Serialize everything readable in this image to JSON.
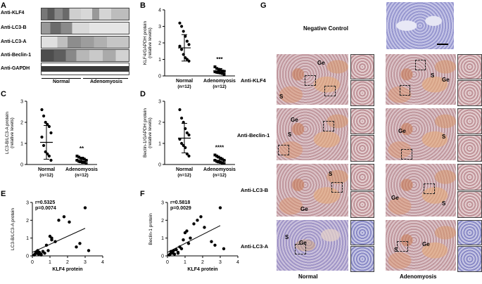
{
  "panels": {
    "A": "A",
    "B": "B",
    "C": "C",
    "D": "D",
    "E": "E",
    "F": "F",
    "G": "G"
  },
  "western_blot": {
    "rows": [
      "Anti-KLF4",
      "Anti-LC3-B",
      "Anti-LC3-A",
      "Anti-Beclin-1",
      "Anti-GAPDH"
    ],
    "groups": [
      "Normal",
      "Adenomyosis"
    ]
  },
  "chart_data": [
    {
      "type": "scatter",
      "panel": "B",
      "ylabel": "KLF4/GAPDH protein (relative levels)",
      "categories": [
        "Normal\n(n=12)",
        "Adenomyosis\n(n=12)"
      ],
      "ylim": [
        0,
        4
      ],
      "yticks": [
        0,
        1,
        2,
        3,
        4
      ],
      "series": [
        {
          "values": [
            3.2,
            3.0,
            2.7,
            2.4,
            2.1,
            1.9,
            1.8,
            1.6,
            1.3,
            1.1,
            1.0,
            0.9
          ]
        },
        {
          "values": [
            0.55,
            0.45,
            0.4,
            0.35,
            0.3,
            0.28,
            0.25,
            0.22,
            0.2,
            0.18,
            0.15,
            0.1
          ]
        }
      ],
      "mean": [
        1.7,
        0.3
      ],
      "sd": [
        0.8,
        0.15
      ],
      "significance": "***"
    },
    {
      "type": "scatter",
      "panel": "C",
      "ylabel": "LC3-B/LC3-A protein (relative levels)",
      "categories": [
        "Normal\n(n=12)",
        "Adenomyosis\n(n=12)"
      ],
      "ylim": [
        0,
        3
      ],
      "yticks": [
        0,
        1,
        2,
        3
      ],
      "series": [
        {
          "values": [
            2.6,
            2.3,
            2.0,
            1.9,
            1.8,
            1.5,
            1.3,
            0.9,
            0.6,
            0.5,
            0.4,
            0.2
          ]
        },
        {
          "values": [
            0.4,
            0.35,
            0.3,
            0.3,
            0.25,
            0.2,
            0.2,
            0.15,
            0.15,
            0.1,
            0.1,
            0.05
          ]
        }
      ],
      "mean": [
        1.05,
        0.2
      ],
      "sd": [
        0.8,
        0.12
      ],
      "significance": "**"
    },
    {
      "type": "scatter",
      "panel": "D",
      "ylabel": "Beclin-1/GAPDH protein (relative levels)",
      "categories": [
        "Normal\n(n=12)",
        "Adenomyosis\n(n=12)"
      ],
      "ylim": [
        0,
        3
      ],
      "yticks": [
        0,
        1,
        2,
        3
      ],
      "series": [
        {
          "values": [
            2.6,
            2.2,
            2.0,
            1.7,
            1.5,
            1.4,
            1.2,
            1.0,
            0.9,
            0.8,
            0.5,
            0.4
          ]
        },
        {
          "values": [
            0.45,
            0.4,
            0.35,
            0.3,
            0.25,
            0.2,
            0.2,
            0.15,
            0.12,
            0.1,
            0.08,
            0.05
          ]
        }
      ],
      "mean": [
        1.25,
        0.2
      ],
      "sd": [
        0.7,
        0.12
      ],
      "significance": "****"
    },
    {
      "type": "scatter",
      "panel": "E",
      "xlabel": "KLF4 protein",
      "ylabel": "LC3-B/LC3-A protein",
      "xlim": [
        0,
        4
      ],
      "ylim": [
        0,
        3
      ],
      "xticks": [
        0,
        1,
        2,
        3,
        4
      ],
      "yticks": [
        0,
        1,
        2,
        3
      ],
      "annotation": [
        "r=0.5325",
        "p=0.0074"
      ],
      "points": [
        [
          0.1,
          0.05
        ],
        [
          0.15,
          0.1
        ],
        [
          0.2,
          0.2
        ],
        [
          0.25,
          0.15
        ],
        [
          0.3,
          0.3
        ],
        [
          0.35,
          0.1
        ],
        [
          0.4,
          0.2
        ],
        [
          0.5,
          0.05
        ],
        [
          0.6,
          0.25
        ],
        [
          0.7,
          0.15
        ],
        [
          0.8,
          0.6
        ],
        [
          0.9,
          0.3
        ],
        [
          1.0,
          1.1
        ],
        [
          1.1,
          0.9
        ],
        [
          1.3,
          0.8
        ],
        [
          1.5,
          2.0
        ],
        [
          1.8,
          2.2
        ],
        [
          2.1,
          1.9
        ],
        [
          2.5,
          0.5
        ],
        [
          2.7,
          0.7
        ],
        [
          3.0,
          2.7
        ],
        [
          3.2,
          0.3
        ],
        [
          1.1,
          1.0
        ],
        [
          0.5,
          0.1
        ]
      ],
      "trendline": [
        [
          0,
          0.2
        ],
        [
          3.0,
          1.55
        ]
      ]
    },
    {
      "type": "scatter",
      "panel": "F",
      "xlabel": "KLF4 protein",
      "ylabel": "Beclin-1 protein",
      "xlim": [
        0,
        4
      ],
      "ylim": [
        0,
        3
      ],
      "xticks": [
        0,
        1,
        2,
        3,
        4
      ],
      "yticks": [
        0,
        1,
        2,
        3
      ],
      "annotation": [
        "r=0.5818",
        "p=0.0029"
      ],
      "points": [
        [
          0.1,
          0.05
        ],
        [
          0.15,
          0.1
        ],
        [
          0.2,
          0.25
        ],
        [
          0.3,
          0.15
        ],
        [
          0.35,
          0.3
        ],
        [
          0.4,
          0.1
        ],
        [
          0.5,
          0.35
        ],
        [
          0.6,
          0.2
        ],
        [
          0.7,
          0.5
        ],
        [
          0.8,
          0.4
        ],
        [
          0.9,
          0.9
        ],
        [
          1.0,
          1.3
        ],
        [
          1.1,
          1.4
        ],
        [
          1.3,
          1.0
        ],
        [
          1.5,
          1.8
        ],
        [
          1.7,
          2.0
        ],
        [
          1.9,
          2.2
        ],
        [
          2.1,
          1.6
        ],
        [
          2.5,
          0.8
        ],
        [
          2.7,
          0.6
        ],
        [
          3.0,
          2.7
        ],
        [
          3.2,
          0.4
        ],
        [
          0.6,
          0.15
        ],
        [
          1.2,
          0.7
        ]
      ],
      "trendline": [
        [
          0,
          0.2
        ],
        [
          3.0,
          1.7
        ]
      ]
    }
  ],
  "panel_g": {
    "negative_control": "Negative Control",
    "rows": [
      "Anti-KLF4",
      "Anti-Beclin-1",
      "Anti-LC3-B",
      "Anti-LC3-A"
    ],
    "groups": [
      "Normal",
      "Adenomyosis"
    ],
    "markers": {
      "S": "S",
      "Ge": "Ge"
    }
  }
}
